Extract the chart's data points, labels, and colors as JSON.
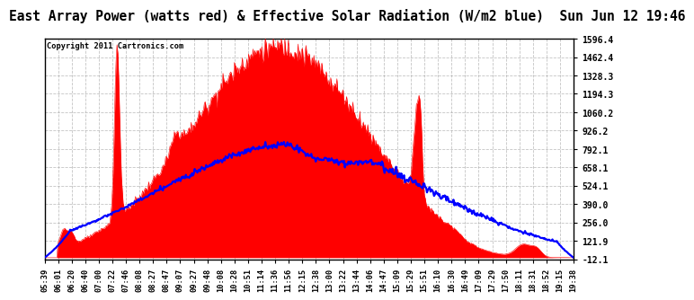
{
  "title": "East Array Power (watts red) & Effective Solar Radiation (W/m2 blue)  Sun Jun 12 19:46",
  "copyright": "Copyright 2011 Cartronics.com",
  "background_color": "#ffffff",
  "plot_bg_color": "#ffffff",
  "grid_color": "#aaaaaa",
  "red_color": "#ff0000",
  "blue_color": "#0000ff",
  "title_fontsize": 10.5,
  "ylabel_right_ticks": [
    1596.4,
    1462.4,
    1328.3,
    1194.3,
    1060.2,
    926.2,
    792.1,
    658.1,
    524.1,
    390.0,
    256.0,
    121.9,
    -12.1
  ],
  "ymin": -12.1,
  "ymax": 1596.4,
  "x_tick_labels": [
    "05:39",
    "06:01",
    "06:20",
    "06:40",
    "07:00",
    "07:22",
    "07:46",
    "08:08",
    "08:27",
    "08:47",
    "09:07",
    "09:27",
    "09:48",
    "10:08",
    "10:28",
    "10:51",
    "11:14",
    "11:36",
    "11:56",
    "12:15",
    "12:38",
    "13:00",
    "13:22",
    "13:44",
    "14:06",
    "14:47",
    "15:09",
    "15:29",
    "15:51",
    "16:10",
    "16:30",
    "16:49",
    "17:09",
    "17:29",
    "17:50",
    "18:11",
    "18:31",
    "18:52",
    "19:15",
    "19:38"
  ]
}
